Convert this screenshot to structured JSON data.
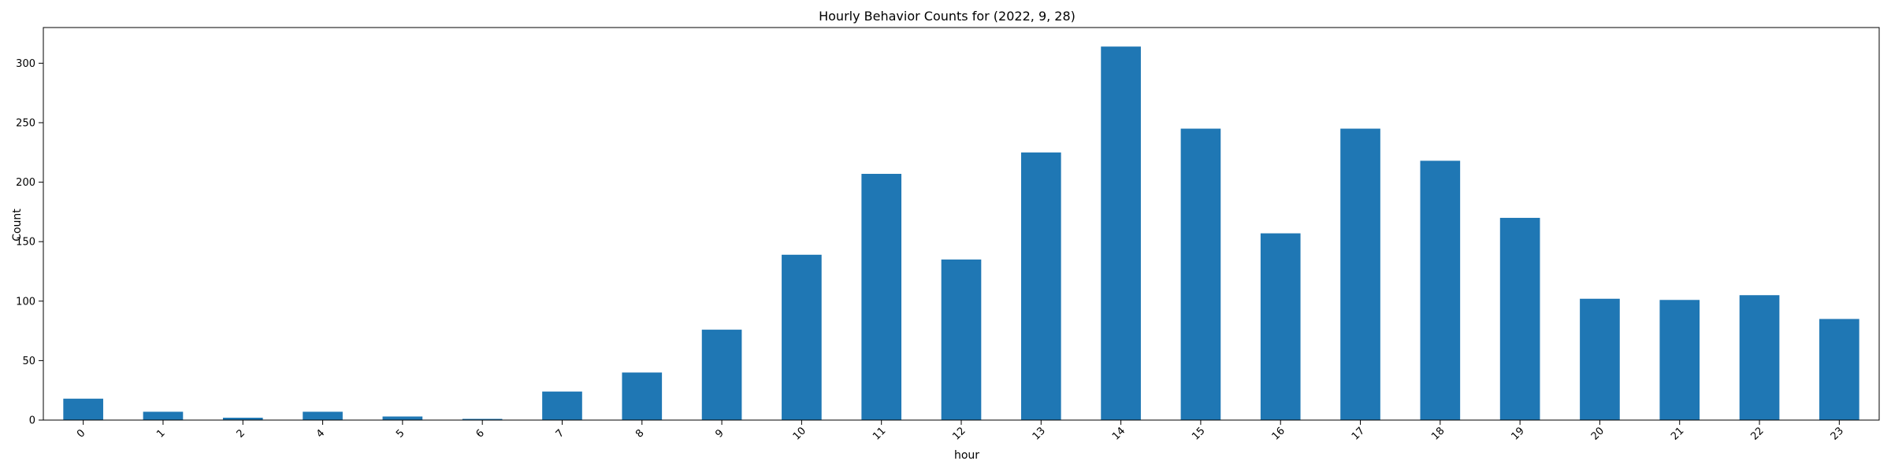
{
  "chart_data": {
    "type": "bar",
    "title": "Hourly Behavior Counts for (2022, 9, 28)",
    "xlabel": "hour",
    "ylabel": "Count",
    "categories": [
      "0",
      "1",
      "2",
      "4",
      "5",
      "6",
      "7",
      "8",
      "9",
      "10",
      "11",
      "12",
      "13",
      "14",
      "15",
      "16",
      "17",
      "18",
      "19",
      "20",
      "21",
      "22",
      "23"
    ],
    "values": [
      18,
      7,
      2,
      7,
      3,
      1,
      24,
      40,
      76,
      139,
      207,
      135,
      225,
      314,
      245,
      157,
      245,
      218,
      170,
      102,
      101,
      105,
      85
    ],
    "ylim": [
      0,
      330
    ],
    "yticks": [
      0,
      50,
      100,
      150,
      200,
      250,
      300
    ],
    "bar_color": "#1f77b4",
    "grid": false,
    "legend": null
  }
}
